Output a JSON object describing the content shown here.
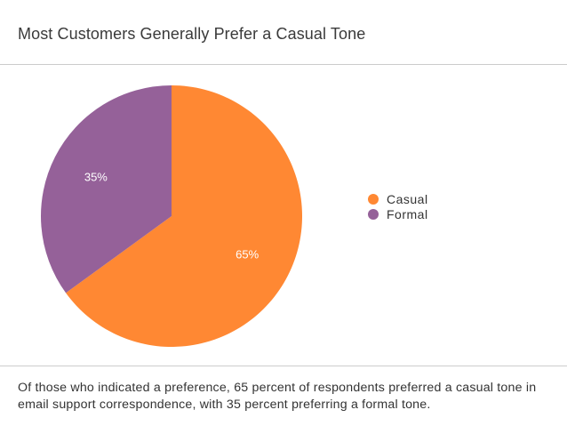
{
  "title": "Most Customers Generally Prefer a Casual Tone",
  "caption": "Of those who indicated a preference, 65 percent of respondents preferred a casual tone in email support correspondence, with 35 percent preferring a formal tone.",
  "colors": {
    "casual": "#ff8833",
    "formal": "#956199"
  },
  "chart_data": {
    "type": "pie",
    "title": "Most Customers Generally Prefer a Casual Tone",
    "categories": [
      "Casual",
      "Formal"
    ],
    "values": [
      65,
      35
    ],
    "data_labels": [
      "65%",
      "35%"
    ],
    "legend_placement": "right",
    "start_angle_deg": 0,
    "direction": "clockwise"
  }
}
